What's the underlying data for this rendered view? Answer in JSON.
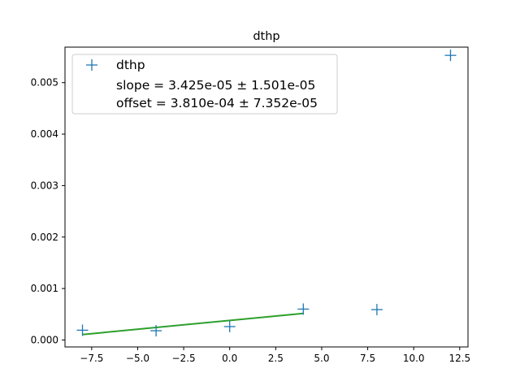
{
  "chart_data": {
    "type": "scatter",
    "title": "dthp",
    "xlabel": "",
    "ylabel": "",
    "xlim": [
      -8.95,
      12.95
    ],
    "ylim": [
      -0.000135,
      0.00569
    ],
    "x_ticks": [
      -7.5,
      -5.0,
      -2.5,
      0.0,
      2.5,
      5.0,
      7.5,
      10.0,
      12.5
    ],
    "x_tick_labels": [
      "−7.5",
      "−5.0",
      "−2.5",
      "0.0",
      "2.5",
      "5.0",
      "7.5",
      "10.0",
      "12.5"
    ],
    "y_ticks": [
      0.0,
      0.001,
      0.002,
      0.003,
      0.004,
      0.005
    ],
    "y_tick_labels": [
      "0.000",
      "0.001",
      "0.002",
      "0.003",
      "0.004",
      "0.005"
    ],
    "grid": false,
    "legend_position": "top-left",
    "series": [
      {
        "name": "dthp",
        "marker": "+",
        "color": "#1f77b4",
        "x": [
          -8,
          -4,
          0,
          4,
          8,
          12
        ],
        "y": [
          0.00019,
          0.00018,
          0.00026,
          0.0006,
          0.00059,
          0.00553
        ]
      }
    ],
    "fit_line": {
      "color": "#2ca02c",
      "x": [
        -8,
        4
      ],
      "y": [
        0.000106,
        0.000517
      ]
    },
    "legend_entries": [
      "dthp",
      "slope = 3.425e-05 ± 1.501e-05",
      "offset = 3.810e-04 ± 7.352e-05"
    ]
  }
}
